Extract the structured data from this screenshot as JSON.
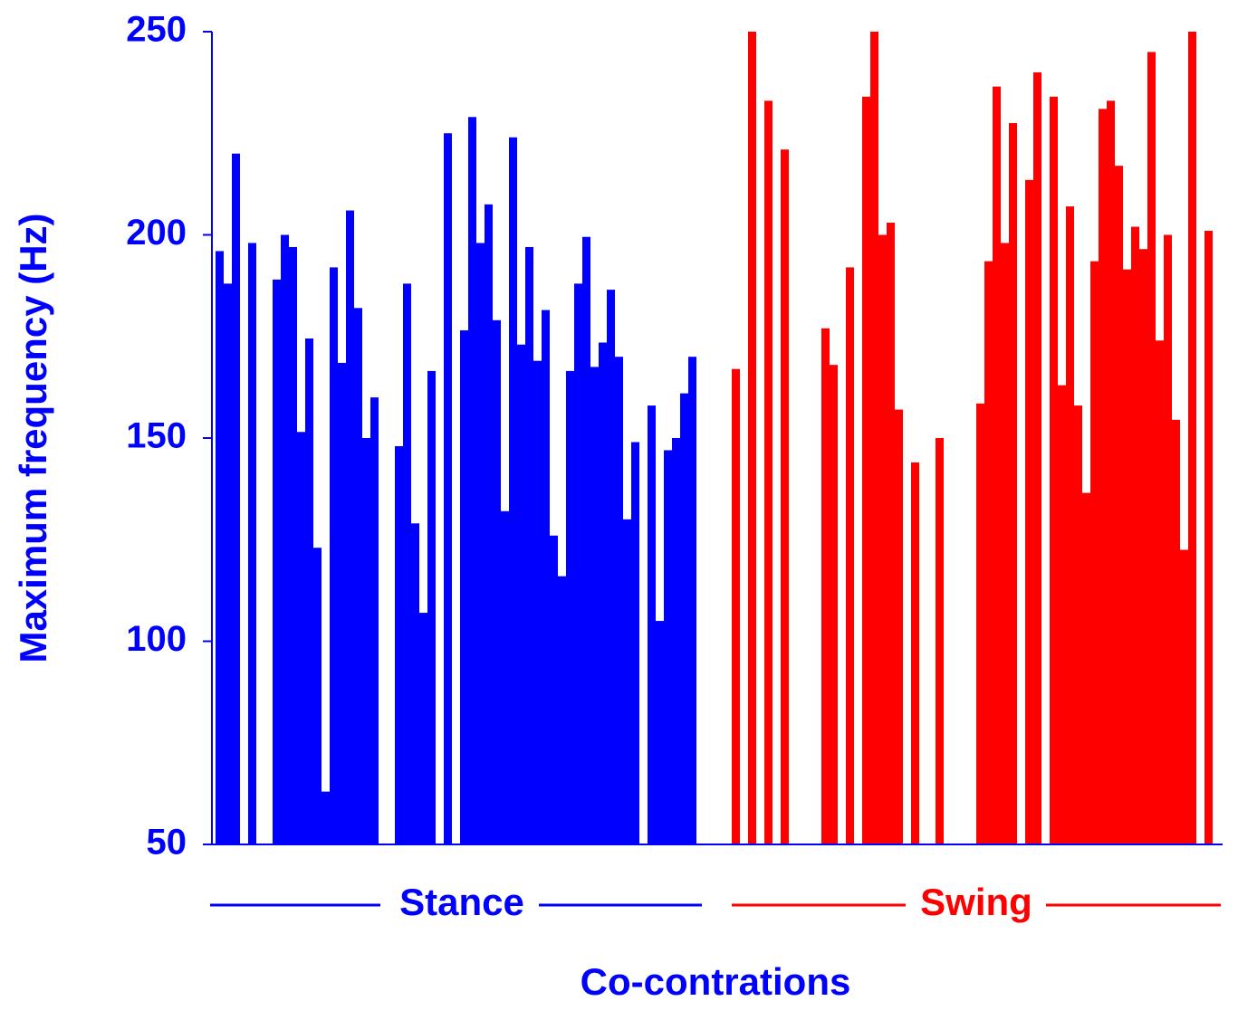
{
  "chart_data": {
    "type": "bar",
    "ylabel": "Maximum frequency (Hz)",
    "xlabel": "Co-contrations",
    "ylim": [
      50,
      250
    ],
    "yticks": [
      50,
      100,
      150,
      200,
      250
    ],
    "series": [
      {
        "name": "Stance",
        "color": "#0000ff",
        "values": [
          196,
          188,
          220,
          null,
          198,
          null,
          null,
          189,
          200,
          197,
          151.5,
          174.5,
          123,
          63,
          192,
          168.5,
          206,
          182,
          150,
          160,
          null,
          null,
          148,
          188,
          129,
          107,
          166.5,
          null,
          225,
          null,
          176.5,
          229,
          198,
          207.5,
          179,
          132,
          224,
          173,
          197,
          169,
          181.5,
          126,
          116,
          166.5,
          188,
          199.5,
          167.5,
          173.5,
          186.5,
          170,
          130,
          149,
          null,
          158,
          105,
          147,
          150,
          161,
          170
        ]
      },
      {
        "name": "Swing",
        "color": "#ff0000",
        "values": [
          167,
          null,
          250,
          null,
          233,
          null,
          221,
          null,
          null,
          null,
          null,
          177,
          168,
          null,
          192,
          null,
          234,
          250,
          200,
          203,
          157,
          null,
          144,
          null,
          null,
          150,
          null,
          null,
          null,
          null,
          158.5,
          193.5,
          236.5,
          198,
          227.5,
          null,
          213.5,
          240,
          null,
          234,
          163,
          207,
          158,
          136.5,
          193.5,
          231,
          233,
          217,
          191.5,
          202,
          196.5,
          245,
          174,
          200,
          154.5,
          122.5,
          250,
          null,
          201
        ]
      }
    ]
  }
}
